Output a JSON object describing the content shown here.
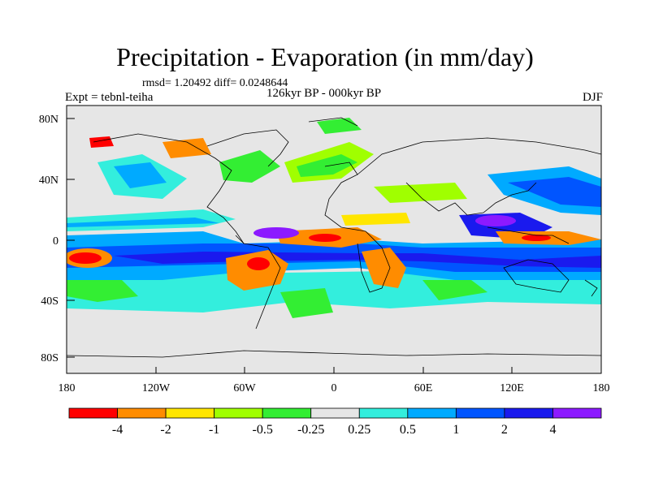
{
  "title": "Precipitation - Evaporation (in mm/day)",
  "stats": "rmsd= 1.20492 diff= 0.0248644",
  "subtitle": "126kyr BP - 000kyr BP",
  "experiment": "Expt = tebnl-teiha",
  "season": "DJF",
  "lat_ticks": [
    "80N",
    "40N",
    "0",
    "40S",
    "80S"
  ],
  "lon_ticks": [
    "180",
    "120W",
    "60W",
    "0",
    "60E",
    "120E",
    "180"
  ],
  "colorbar": {
    "colors": [
      "#ff0000",
      "#ff8c00",
      "#ffe600",
      "#a0ff00",
      "#33ee33",
      "#e6e6e6",
      "#33eedd",
      "#00aaff",
      "#0055ff",
      "#1a1aee",
      "#8c1aff"
    ],
    "labels": [
      "-4",
      "-2",
      "-1",
      "-0.5",
      "-0.25",
      "0.25",
      "0.5",
      "1",
      "2",
      "4"
    ]
  },
  "colors": {
    "land_ocean_neutral": "#e6e6e6",
    "coastline": "#000000"
  }
}
